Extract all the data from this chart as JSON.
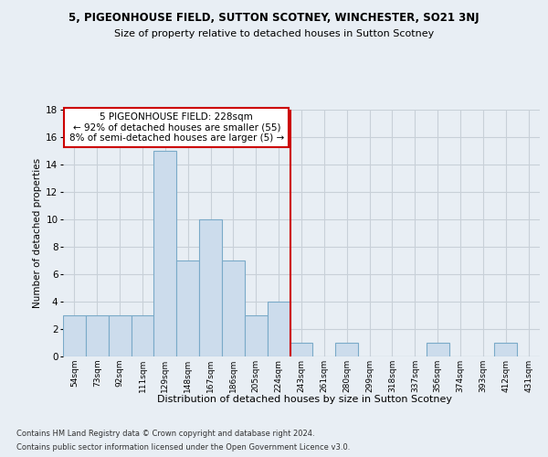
{
  "title": "5, PIGEONHOUSE FIELD, SUTTON SCOTNEY, WINCHESTER, SO21 3NJ",
  "subtitle": "Size of property relative to detached houses in Sutton Scotney",
  "xlabel": "Distribution of detached houses by size in Sutton Scotney",
  "ylabel": "Number of detached properties",
  "bar_labels": [
    "54sqm",
    "73sqm",
    "92sqm",
    "111sqm",
    "129sqm",
    "148sqm",
    "167sqm",
    "186sqm",
    "205sqm",
    "224sqm",
    "243sqm",
    "261sqm",
    "280sqm",
    "299sqm",
    "318sqm",
    "337sqm",
    "356sqm",
    "374sqm",
    "393sqm",
    "412sqm",
    "431sqm"
  ],
  "bar_values": [
    3,
    3,
    3,
    3,
    15,
    7,
    10,
    7,
    3,
    4,
    1,
    0,
    1,
    0,
    0,
    0,
    1,
    0,
    0,
    1,
    0
  ],
  "bar_color": "#ccdcec",
  "bar_edge_color": "#7aaac8",
  "bar_width": 1.0,
  "vline_x": 9.5,
  "vline_color": "#cc0000",
  "ylim": [
    0,
    18
  ],
  "yticks": [
    0,
    2,
    4,
    6,
    8,
    10,
    12,
    14,
    16,
    18
  ],
  "annotation_text": "5 PIGEONHOUSE FIELD: 228sqm\n← 92% of detached houses are smaller (55)\n8% of semi-detached houses are larger (5) →",
  "annotation_box_color": "#ffffff",
  "annotation_box_edge": "#cc0000",
  "footer_line1": "Contains HM Land Registry data © Crown copyright and database right 2024.",
  "footer_line2": "Contains public sector information licensed under the Open Government Licence v3.0.",
  "grid_color": "#c8d0d8",
  "background_color": "#e8eef4"
}
